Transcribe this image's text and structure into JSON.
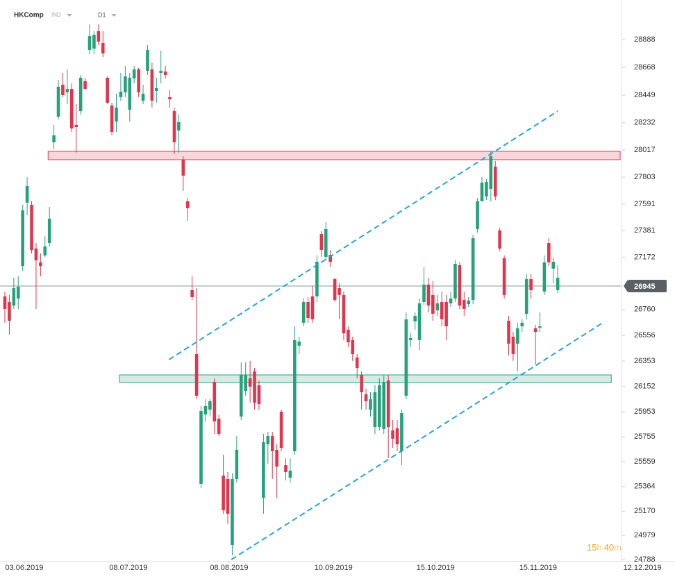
{
  "chart_data": {
    "type": "candlestick",
    "title": "HKComp",
    "instrument_type": "IND",
    "timeframe": "D1",
    "countdown": [
      "15",
      "h",
      "40",
      "m"
    ],
    "up_color": "#26a17b",
    "down_color": "#e2344d",
    "current_price": 26945,
    "xlim": [
      -1.09,
      150.3
    ],
    "ylim": [
      24777,
      29200
    ],
    "xticks": [
      {
        "value": 4.36,
        "label": "03.06.2019"
      },
      {
        "value": 27.7,
        "label": "08.07.2019"
      },
      {
        "value": 50.3,
        "label": "08.08.2019"
      },
      {
        "value": 73.7,
        "label": "10.09.2019"
      },
      {
        "value": 96.6,
        "label": "15.10.2019"
      },
      {
        "value": 119.6,
        "label": "15.11.2019"
      },
      {
        "value": 143.0,
        "label": "12.12.2019"
      }
    ],
    "yticks": [
      28888,
      28668,
      28449,
      28232,
      28017,
      27803,
      27591,
      27381,
      27172,
      26760,
      26556,
      26353,
      26152,
      25953,
      25755,
      25559,
      25364,
      25170,
      24979,
      24788
    ],
    "zones": [
      {
        "x": [
          9.7,
          138
        ],
        "y": [
          27941,
          28007
        ],
        "color": "#e2344d"
      },
      {
        "x": [
          25.7,
          136
        ],
        "y": [
          26184,
          26244
        ],
        "color": "#26a17b"
      }
    ],
    "trendlines": [
      {
        "x": [
          36.8,
          124
        ],
        "y": [
          26364,
          28324
        ],
        "color": "#27a3dc"
      },
      {
        "x": [
          50.8,
          134.1
        ],
        "y": [
          24788,
          26655
        ],
        "color": "#27a3dc"
      }
    ],
    "open": [
      26863,
      26819,
      26791,
      26846,
      27103,
      27602,
      27585,
      27240,
      27131,
      27186,
      27284,
      28078,
      28280,
      28532,
      28472,
      28499,
      28215,
      28324,
      28560,
      28806,
      28817,
      28954,
      28861,
      28587,
      28368,
      28242,
      28434,
      28472,
      28335,
      28581,
      28653,
      28406,
      28642,
      28653,
      28483,
      28625,
      28636,
      28434,
      28324,
      28171,
      27941,
      27613,
      26912,
      26408,
      25385,
      25932,
      25970,
      26189,
      25899,
      25450,
      25423,
      24903,
      25423,
      25916,
      26118,
      26217,
      26271,
      26162,
      25275,
      25697,
      25762,
      25653,
      25954,
      25532,
      25434,
      25642,
      26474,
      26655,
      26819,
      26863,
      26863,
      27355,
      27175,
      27191,
      26999,
      26928,
      26874,
      26600,
      26518,
      26381,
      26244,
      26091,
      25970,
      25833,
      25833,
      25817,
      26200,
      25806,
      25823,
      25642,
      26080,
      26518,
      26666,
      26518,
      26819,
      26956,
      26874,
      26753,
      26819,
      26819,
      26808,
      26846,
      27109,
      26835,
      26802,
      26835,
      27394,
      27613,
      27651,
      27711,
      27886,
      27383,
      27164,
      26671,
      26545,
      26490,
      26627,
      26726,
      26999,
      26611,
      26616,
      26901,
      27284,
      27082,
      26912
    ],
    "high": [
      26901,
      26874,
      27010,
      27021,
      27585,
      27804,
      27613,
      27284,
      27202,
      27339,
      27569,
      28215,
      28570,
      28625,
      28653,
      28543,
      28379,
      28609,
      28587,
      29008,
      28954,
      29008,
      28954,
      28598,
      28390,
      28461,
      28625,
      28680,
      28625,
      28680,
      28664,
      28532,
      28844,
      28707,
      28587,
      28800,
      28680,
      28488,
      28352,
      28297,
      27968,
      27640,
      27021,
      26928,
      25998,
      26052,
      26052,
      26217,
      25927,
      25615,
      25478,
      25467,
      25762,
      26343,
      26343,
      26354,
      26299,
      26200,
      25779,
      25795,
      25795,
      25697,
      25970,
      25587,
      25587,
      26627,
      26545,
      26846,
      26857,
      26945,
      27186,
      27377,
      27448,
      27229,
      27010,
      26967,
      26901,
      26627,
      26545,
      26408,
      26271,
      26135,
      26107,
      26162,
      26217,
      26244,
      26244,
      25888,
      25888,
      25970,
      26737,
      26572,
      26737,
      26846,
      27093,
      27010,
      26983,
      26874,
      26901,
      26874,
      26901,
      27147,
      27131,
      26901,
      26857,
      27350,
      27640,
      27804,
      27788,
      28007,
      27930,
      27405,
      27186,
      26709,
      26583,
      26655,
      26682,
      27038,
      27038,
      26638,
      26737,
      27186,
      27322,
      27164,
      27109
    ],
    "low": [
      26655,
      26562,
      26764,
      26764,
      27065,
      27503,
      27202,
      26764,
      27021,
      27175,
      27257,
      28023,
      28258,
      28434,
      28379,
      28160,
      27996,
      28297,
      28488,
      28773,
      28773,
      28844,
      28751,
      28379,
      28133,
      28160,
      28406,
      28434,
      28242,
      28543,
      28434,
      28379,
      28609,
      28352,
      28390,
      28543,
      28581,
      28352,
      27985,
      27996,
      27695,
      27459,
      26835,
      26052,
      25352,
      25877,
      25916,
      25779,
      25762,
      25149,
      25067,
      24821,
      25396,
      25888,
      26080,
      26025,
      25970,
      25970,
      25149,
      25543,
      25423,
      25270,
      25642,
      25412,
      25396,
      25615,
      26408,
      26627,
      26655,
      26655,
      26819,
      27175,
      27147,
      27093,
      26819,
      26682,
      26518,
      26463,
      26354,
      26217,
      25970,
      25970,
      25916,
      25779,
      25806,
      25779,
      25587,
      25669,
      25642,
      25532,
      26052,
      26463,
      26600,
      26436,
      26791,
      26737,
      26671,
      26709,
      26627,
      26518,
      26780,
      26819,
      26764,
      26709,
      26780,
      26802,
      27366,
      27613,
      27623,
      27613,
      27623,
      27218,
      26846,
      26397,
      26354,
      26271,
      26583,
      26682,
      26846,
      26326,
      26583,
      26874,
      27103,
      26967,
      26890
    ],
    "close": [
      26764,
      26671,
      26928,
      26939,
      27541,
      27733,
      27229,
      27147,
      27103,
      27257,
      27476,
      28133,
      28516,
      28450,
      28499,
      28187,
      28198,
      28587,
      28499,
      28915,
      28926,
      28872,
      28779,
      28390,
      28160,
      28352,
      28477,
      28598,
      28587,
      28653,
      28472,
      28461,
      28806,
      28406,
      28505,
      28642,
      28609,
      28417,
      28078,
      28237,
      27815,
      27558,
      26857,
      26080,
      25959,
      25998,
      26036,
      25877,
      25779,
      25177,
      25149,
      25423,
      25653,
      26244,
      26244,
      26151,
      26025,
      26014,
      25713,
      25762,
      25642,
      25521,
      25669,
      25478,
      25489,
      26518,
      26507,
      26819,
      26693,
      26682,
      27136,
      27229,
      27394,
      27136,
      26835,
      26874,
      26572,
      26501,
      26408,
      26299,
      26107,
      26036,
      26052,
      26107,
      26162,
      26189,
      25833,
      25740,
      25697,
      25943,
      26682,
      26534,
      26709,
      26808,
      26956,
      26791,
      26726,
      26808,
      26682,
      26627,
      26846,
      27120,
      26791,
      26764,
      26830,
      27322,
      27613,
      27760,
      27766,
      27968,
      27651,
      27240,
      26874,
      26490,
      26408,
      26611,
      26655,
      26999,
      26912,
      26583,
      26627,
      27131,
      27131,
      27136,
      27010
    ]
  }
}
